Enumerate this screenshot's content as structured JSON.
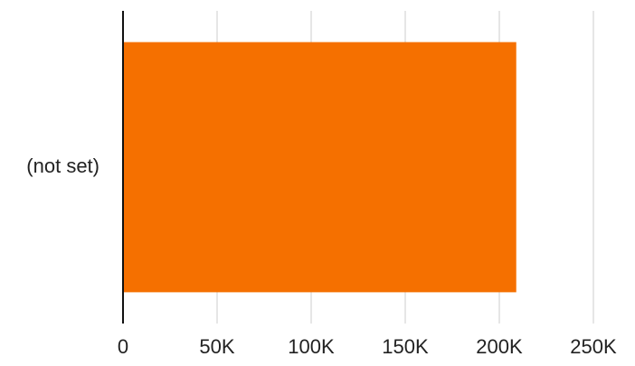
{
  "chart_data": {
    "type": "bar",
    "orientation": "horizontal",
    "categories": [
      "(not set)"
    ],
    "values": [
      209000
    ],
    "xlim": [
      0,
      250000
    ],
    "x_ticks": [
      0,
      50000,
      100000,
      150000,
      200000,
      250000
    ],
    "x_tick_labels": [
      "0",
      "50K",
      "100K",
      "150K",
      "200K",
      "250K"
    ],
    "grid": "vertical",
    "legend": "none",
    "bar_color": "#F57000"
  }
}
